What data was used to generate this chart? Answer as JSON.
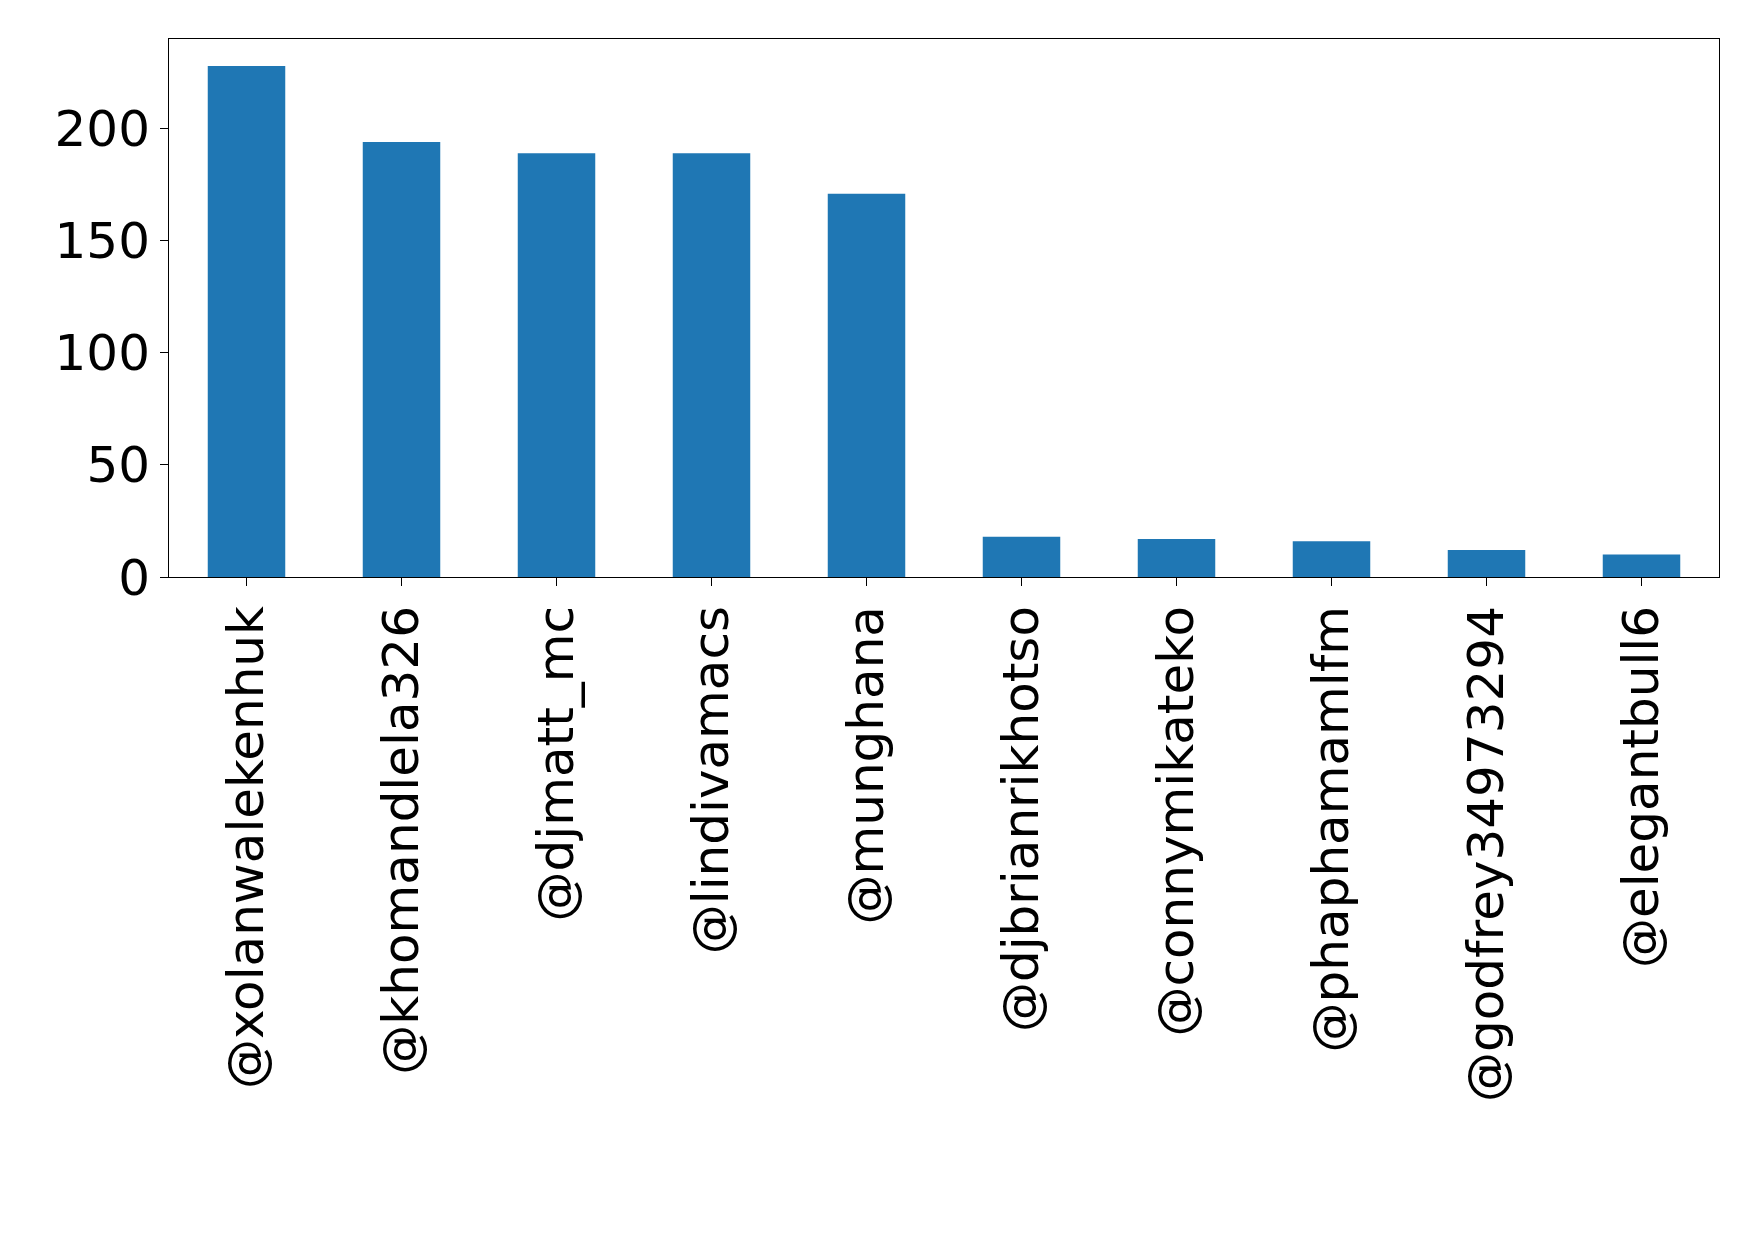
{
  "chart_data": {
    "type": "bar",
    "categories": [
      "@xolanwalekenhuk",
      "@khomandlela326",
      "@djmatt_mc",
      "@lindivamacs",
      "@munghana",
      "@djbrianrikhotso",
      "@connymikateko",
      "@phaphamamlfm",
      "@godfrey34973294",
      "@elegantbull6"
    ],
    "values": [
      228,
      194,
      189,
      189,
      171,
      18,
      17,
      16,
      12,
      10
    ],
    "color": "#1f77b4",
    "ylim": [
      0,
      240
    ],
    "yticks": [
      0,
      50,
      100,
      150,
      200
    ],
    "grid": false,
    "legend": false
  }
}
